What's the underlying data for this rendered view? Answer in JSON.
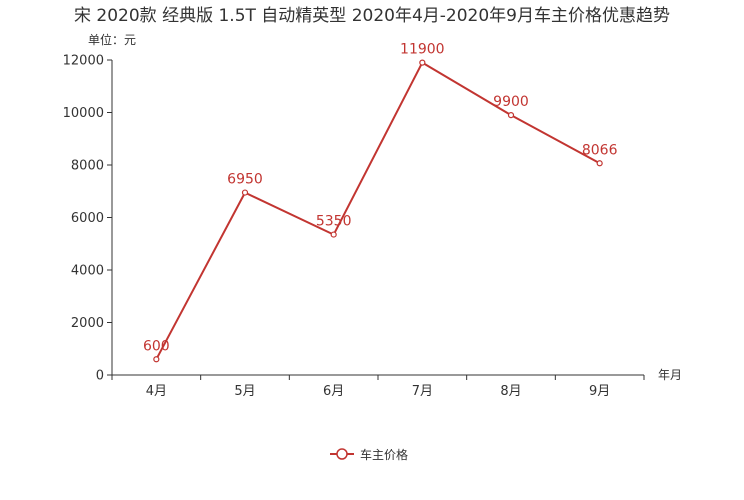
{
  "chart_data": {
    "type": "line",
    "title": "宋 2020款 经典版 1.5T 自动精英型 2020年4月-2020年9月车主价格优惠趋势",
    "unit_label": "单位：元",
    "xlabel": "年月",
    "ylabel": "",
    "categories": [
      "4月",
      "5月",
      "6月",
      "7月",
      "8月",
      "9月"
    ],
    "series": [
      {
        "name": "车主价格",
        "values": [
          600,
          6950,
          5350,
          11900,
          9900,
          8066
        ]
      }
    ],
    "ylim": [
      0,
      12000
    ],
    "yticks": [
      0,
      2000,
      4000,
      6000,
      8000,
      10000,
      12000
    ],
    "legend_position": "bottom-center",
    "grid": false,
    "colors": {
      "series": "#c23531",
      "axis": "#333333",
      "text": "#333333",
      "title": "#333333"
    }
  }
}
